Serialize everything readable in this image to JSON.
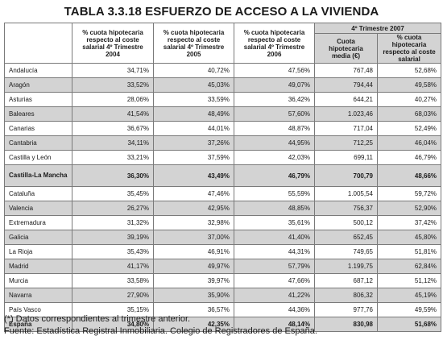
{
  "title": "TABLA 3.3.18 ESFUERZO DE ACCESO A LA VIVIENDA",
  "headers": {
    "col1": "% cuota hipotecaria respecto al coste salarial 4º Trimestre 2004",
    "col2": "% cuota hipotecaria respecto al coste salarial 4º Trimestre 2005",
    "col3": "% cuota hipotecaria respecto al coste salarial 4º Trimestre 2006",
    "group": "4º Trimestre 2007",
    "col4": "Cuota hipotecaria media (€)",
    "col5": "% cuota hipotecaria respecto al coste salarial"
  },
  "rows": [
    {
      "region": "Andalucía",
      "v": [
        "34,71%",
        "40,72%",
        "47,56%",
        "767,48",
        "52,68%"
      ]
    },
    {
      "region": "Aragón",
      "v": [
        "33,52%",
        "45,03%",
        "49,07%",
        "794,44",
        "49,58%"
      ]
    },
    {
      "region": "Asturias",
      "v": [
        "28,06%",
        "33,59%",
        "36,42%",
        "644,21",
        "40,27%"
      ]
    },
    {
      "region": "Baleares",
      "v": [
        "41,54%",
        "48,49%",
        "57,60%",
        "1.023,46",
        "68,03%"
      ]
    },
    {
      "region": "Canarias",
      "v": [
        "36,67%",
        "44,01%",
        "48,87%",
        "717,04",
        "52,49%"
      ]
    },
    {
      "region": "Cantabria",
      "v": [
        "34,11%",
        "37,26%",
        "44,95%",
        "712,25",
        "46,04%"
      ]
    },
    {
      "region": "Castilla y León",
      "v": [
        "33,21%",
        "37,59%",
        "42,03%",
        "699,11",
        "46,79%"
      ]
    },
    {
      "region": "Castilla-La Mancha",
      "v": [
        "36,30%",
        "43,49%",
        "46,79%",
        "700,79",
        "48,66%"
      ]
    },
    {
      "region": "Cataluña",
      "v": [
        "35,45%",
        "47,46%",
        "55,59%",
        "1.005,54",
        "59,72%"
      ]
    },
    {
      "region": "Valencia",
      "v": [
        "26,27%",
        "42,95%",
        "48,85%",
        "756,37",
        "52,90%"
      ]
    },
    {
      "region": "Extremadura",
      "v": [
        "31,32%",
        "32,98%",
        "35,61%",
        "500,12",
        "37,42%"
      ]
    },
    {
      "region": "Galicia",
      "v": [
        "39,19%",
        "37,00%",
        "41,40%",
        "652,45",
        "45,80%"
      ]
    },
    {
      "region": "La Rioja",
      "v": [
        "35,43%",
        "46,91%",
        "44,31%",
        "749,65",
        "51,81%"
      ]
    },
    {
      "region": "Madrid",
      "v": [
        "41,17%",
        "49,97%",
        "57,79%",
        "1.199,75",
        "62,84%"
      ]
    },
    {
      "region": "Murcia",
      "v": [
        "33,58%",
        "39,97%",
        "47,66%",
        "687,12",
        "51,12%"
      ]
    },
    {
      "region": "Navarra",
      "v": [
        "27,90%",
        "35,90%",
        "41,22%",
        "806,32",
        "45,19%"
      ]
    },
    {
      "region": "País Vasco",
      "v": [
        "35,15%",
        "36,57%",
        "44,36%",
        "977,76",
        "49,59%"
      ]
    },
    {
      "region": "España",
      "v": [
        "34,80%",
        "42,35%",
        "48,14%",
        "830,98",
        "51,68%"
      ]
    }
  ],
  "footnote": "(*) Datos correspondientes al trimestre anterior.",
  "source": "Fuente: Estadística Registral Inmobiliaria. Colegio de Registradores de España."
}
